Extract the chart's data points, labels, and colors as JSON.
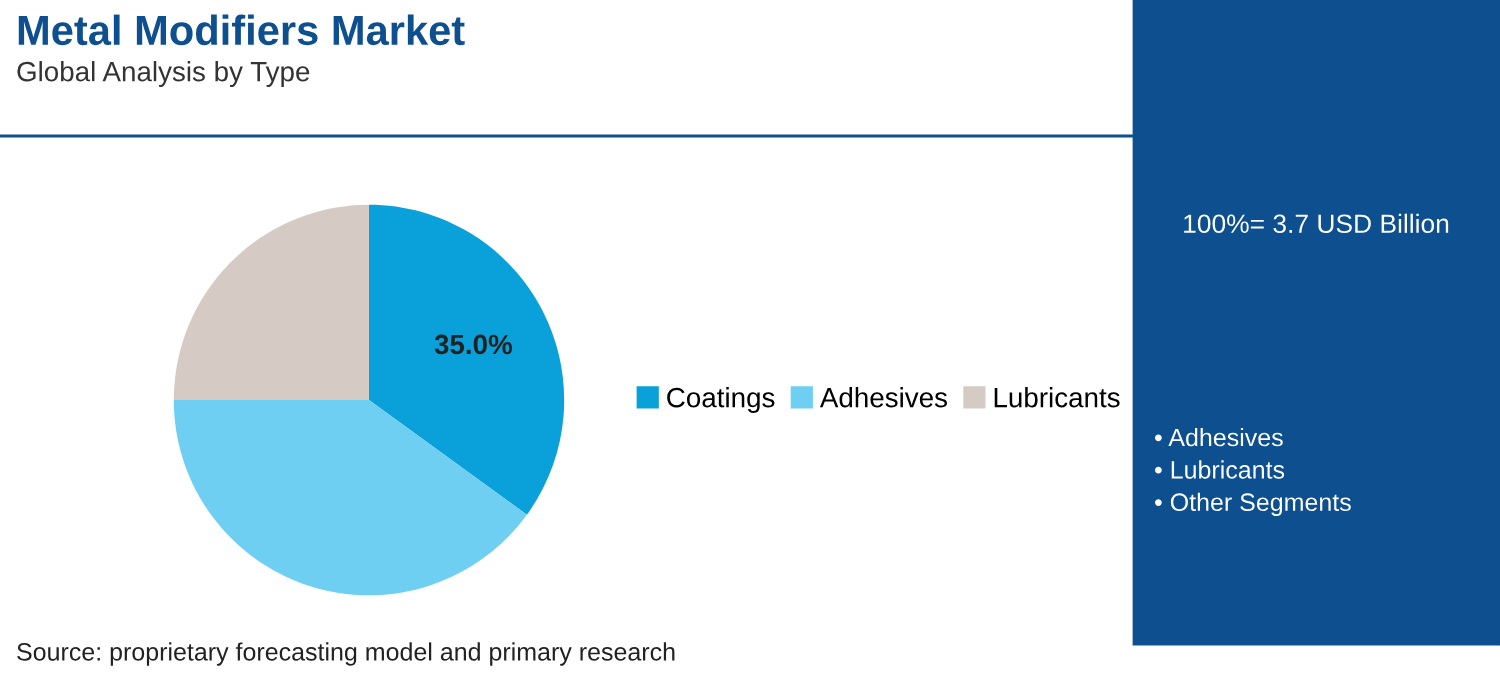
{
  "chart_data": {
    "type": "pie",
    "title": "Metal Modifiers Market",
    "subtitle": "Global Analysis by Type",
    "categories": [
      "Coatings",
      "Adhesives",
      "Lubricants"
    ],
    "values": [
      35,
      40,
      25
    ],
    "colors": [
      "#0aa0d9",
      "#6ecff3",
      "#d5cbc4"
    ],
    "value_labels": [
      "35.0%",
      null,
      null
    ],
    "legend": "right",
    "annotations": [
      "Source: proprietary forecasting model and primary research",
      "100%= 3.7 USD Billion",
      "• Adhesives\n• Lubricants\n• Other Segments"
    ]
  }
}
